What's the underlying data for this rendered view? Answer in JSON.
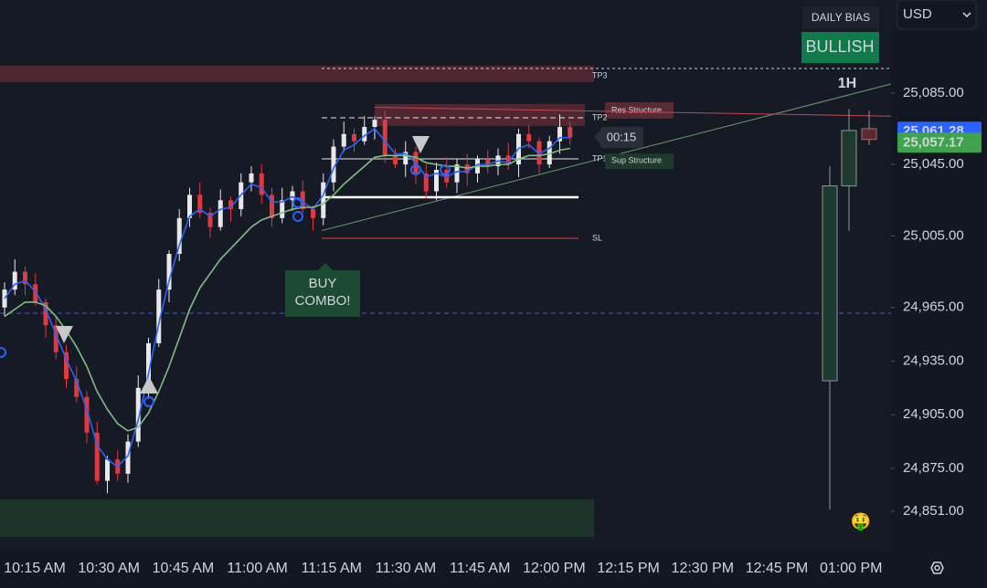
{
  "header": {
    "daily_bias_label": "DAILY BIAS",
    "bias": "BULLISH",
    "currency": "USD",
    "timeframe": "1H"
  },
  "chart_data": {
    "type": "candlestick",
    "ylim": [
      24828,
      25137
    ],
    "yticks": [
      {
        "value": 25085,
        "label": "25,085.00"
      },
      {
        "value": 25045,
        "label": "25,045.00"
      },
      {
        "value": 25005,
        "label": "25,005.00"
      },
      {
        "value": 24965,
        "label": "24,965.00"
      },
      {
        "value": 24935,
        "label": "24,935.00"
      },
      {
        "value": 24905,
        "label": "24,905.00"
      },
      {
        "value": 24875,
        "label": "24,875.00"
      },
      {
        "value": 24851,
        "label": "24,851.00"
      }
    ],
    "x_labels": [
      "10:15 AM",
      "10:30 AM",
      "10:45 AM",
      "11:00 AM",
      "11:15 AM",
      "11:30 AM",
      "11:45 AM",
      "12:00 PM",
      "12:15 PM",
      "12:30 PM",
      "12:45 PM",
      "01:00 PM"
    ],
    "up_color": "#e8e8e8",
    "down_color": "#e0393e",
    "candles": {
      "open": [
        24965,
        24975,
        24985,
        24978,
        24968,
        24955,
        24940,
        24925,
        24915,
        24895,
        24868,
        24880,
        24872,
        24890,
        24920,
        24945,
        24975,
        24995,
        25015,
        25028,
        25018,
        25010,
        25025,
        25020,
        25035,
        25040,
        25028,
        25015,
        25025,
        25030,
        25020,
        25015,
        25035,
        25055,
        25062,
        25058,
        25066,
        25070,
        25050,
        25045,
        25052,
        25040,
        25030,
        25042,
        25035,
        25045,
        25040,
        25048,
        25044,
        25050,
        25045,
        25062,
        25058,
        25045,
        25058,
        25066
      ],
      "high": [
        24979,
        24992,
        24988,
        24984,
        24970,
        24960,
        24944,
        24932,
        24918,
        24901,
        24882,
        24885,
        24894,
        24927,
        24948,
        24981,
        24997,
        25020,
        25032,
        25035,
        25021,
        25031,
        25027,
        25040,
        25044,
        25045,
        25032,
        25032,
        25033,
        25036,
        25022,
        25040,
        25059,
        25069,
        25065,
        25072,
        25072,
        25075,
        25054,
        25058,
        25055,
        25045,
        25046,
        25049,
        25048,
        25051,
        25050,
        25053,
        25054,
        25057,
        25065,
        25067,
        25060,
        25061,
        25073,
        25069
      ],
      "low": [
        24960,
        24972,
        24972,
        24966,
        24948,
        24936,
        24920,
        24912,
        24889,
        24866,
        24861,
        24868,
        24867,
        24887,
        24914,
        24943,
        24968,
        24991,
        25010,
        25015,
        25004,
        25008,
        25013,
        25016,
        25030,
        25023,
        25010,
        25012,
        25019,
        25018,
        25008,
        25011,
        25030,
        25052,
        25052,
        25056,
        25059,
        25046,
        25043,
        25038,
        25034,
        25026,
        25025,
        25032,
        25029,
        25033,
        25035,
        25040,
        25039,
        25042,
        25038,
        25054,
        25040,
        25043,
        25051,
        25056
      ],
      "close": [
        24975,
        24985,
        24978,
        24968,
        24955,
        24940,
        24925,
        24915,
        24895,
        24868,
        24880,
        24872,
        24890,
        24920,
        24945,
        24975,
        24995,
        25015,
        25028,
        25018,
        25010,
        25025,
        25020,
        25035,
        25040,
        25028,
        25015,
        25025,
        25030,
        25020,
        25015,
        25035,
        25055,
        25062,
        25058,
        25066,
        25070,
        25050,
        25045,
        25052,
        25040,
        25030,
        25042,
        25035,
        25045,
        25040,
        25048,
        25044,
        25050,
        25045,
        25062,
        25058,
        25045,
        25058,
        25066,
        25060
      ]
    },
    "ma_fast": {
      "color": "#2962ff",
      "values": [
        24970,
        24978,
        24980,
        24974,
        24964,
        24950,
        24936,
        24924,
        24908,
        24888,
        24880,
        24876,
        24882,
        24902,
        24928,
        24956,
        24980,
        25000,
        25016,
        25020,
        25016,
        25020,
        25021,
        25028,
        25034,
        25032,
        25024,
        25024,
        25027,
        25024,
        25020,
        25028,
        25043,
        25053,
        25056,
        25061,
        25065,
        25058,
        25051,
        25051,
        25046,
        25038,
        25040,
        25038,
        25041,
        25041,
        25045,
        25045,
        25047,
        25046,
        25054,
        25056,
        25051,
        25054,
        25060,
        25060
      ]
    },
    "ma_slow": {
      "color": "#7fbf7f",
      "values": [
        24960,
        24964,
        24968,
        24968,
        24966,
        24960,
        24952,
        24943,
        24932,
        24918,
        24908,
        24900,
        24896,
        24898,
        24906,
        24918,
        24932,
        24948,
        24964,
        24976,
        24984,
        24992,
        24998,
        25004,
        25010,
        25014,
        25016,
        25018,
        25020,
        25021,
        25021,
        25023,
        25028,
        25034,
        25039,
        25044,
        25049,
        25050,
        25050,
        25050,
        25049,
        25046,
        25045,
        25044,
        25044,
        25043,
        25044,
        25044,
        25045,
        25045,
        25048,
        25050,
        25050,
        25051,
        25053,
        25054
      ]
    },
    "htf_candles": {
      "open": [
        24924,
        25033,
        25065
      ],
      "high": [
        25044,
        25076,
        25075
      ],
      "low": [
        24852,
        25008,
        25056
      ],
      "close": [
        25033,
        25064,
        25059
      ]
    },
    "zones": [
      {
        "range": [
          25091,
          25100.2
        ],
        "color": "#5a2a33"
      },
      {
        "range": [
          25066.5,
          25078.8
        ],
        "color": "#5a2a33",
        "label": "Res Structure"
      },
      {
        "range": [
          24836.7,
          24857.6
        ],
        "color": "#1f3a2c"
      }
    ],
    "levels": [
      {
        "label": "TP3",
        "value": 25098.7,
        "color": "#cfcfcf"
      },
      {
        "label": "TP2",
        "value": 25071.1,
        "color": "#e8e8e8"
      },
      {
        "label": "TP1",
        "value": 25048.1,
        "color": "#e8e8e8"
      },
      {
        "value": 25026.7,
        "color": "#ffffff"
      },
      {
        "label": "SL",
        "value": 25003.7,
        "color": "#e0393e"
      },
      {
        "value": 24961.8,
        "color": "#3f5fd8"
      }
    ],
    "sup_structure": {
      "label": "Sup Structure",
      "value": 25047
    },
    "trend_lines": [
      {
        "values": [
          25008,
          25090
        ],
        "color": "#6b9e6b"
      },
      {
        "values": [
          25077,
          25072
        ],
        "color": "#c0484e"
      }
    ],
    "prev_price": {
      "value": 25061.28,
      "label": "25,061.28",
      "color": "#2962ff"
    },
    "last_price": {
      "value": 25057.17,
      "label": "25,057.17",
      "color": "#3fa34d"
    },
    "timer": "00:15",
    "signal": [
      "BUY",
      "COMBO!"
    ],
    "emoji": "🤑"
  }
}
